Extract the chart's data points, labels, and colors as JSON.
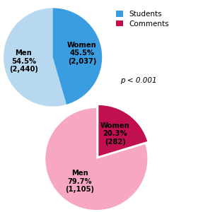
{
  "pie1": {
    "values": [
      54.5,
      45.5
    ],
    "colors": [
      "#b8d8f0",
      "#3a9de0"
    ],
    "labels": [
      "Men\n54.5%\n(2,440)",
      "Women\n45.5%\n(2,037)"
    ],
    "startangle": 90
  },
  "pie2": {
    "values": [
      79.7,
      20.3
    ],
    "colors": [
      "#f7a8c0",
      "#c01050"
    ],
    "labels": [
      "Men\n79.7%\n(1,105)",
      "Women\n20.3%\n(282)"
    ],
    "startangle": 90,
    "explode": [
      0,
      0.07
    ]
  },
  "legend_colors": [
    "#3a9de0",
    "#c01050"
  ],
  "legend_labels": [
    "Students",
    "Comments"
  ],
  "legend_text": "p < 0.001",
  "figsize": [
    2.87,
    3.0
  ],
  "dpi": 100
}
